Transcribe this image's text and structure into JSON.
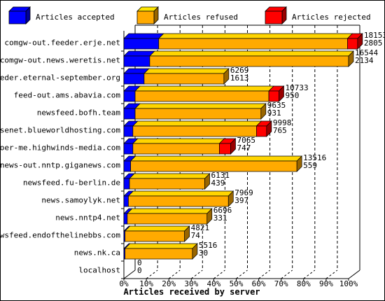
{
  "chart_data": {
    "type": "bar",
    "orientation": "horizontal",
    "stacked": true,
    "percent_scale": true,
    "three_d": true,
    "xlabel": "Articles received by server",
    "xlim": [
      0,
      100
    ],
    "x_ticks": [
      "0%",
      "10%",
      "20%",
      "30%",
      "40%",
      "50%",
      "60%",
      "70%",
      "80%",
      "90%",
      "100%"
    ],
    "grid": true,
    "legend_position": "top",
    "categories": [
      "comgw-out.feeder.erje.net",
      "comgw-out.news.weretis.net",
      "feeder.eternal-september.org",
      "feed-out.ams.abavia.com",
      "newsfeed.bofh.team",
      "usenet.blueworldhosting.com",
      "voer-me.highwinds-media.com",
      "news-out.nntp.giganews.com",
      "newsfeed.fu-berlin.de",
      "news.samoylyk.net",
      "news.nntp4.net",
      "newsfeed.endofthelinebbs.com",
      "news.nk.ca",
      "localhost"
    ],
    "series": [
      {
        "name": "Articles accepted",
        "color": "#0000ff",
        "percent": [
          15.5,
          11.5,
          9,
          5,
          5,
          4,
          4,
          3,
          2.5,
          2,
          1.5,
          0.5,
          0.5,
          0
        ]
      },
      {
        "name": "Articles refused",
        "color": "#ffaa00",
        "percent": [
          84,
          88.5,
          35.5,
          59.5,
          56,
          55,
          38.5,
          74,
          33.5,
          44.5,
          35.5,
          26.5,
          30,
          0
        ]
      },
      {
        "name": "Articles rejected",
        "color": "#ff0000",
        "percent": [
          4.5,
          0,
          0,
          4.5,
          0,
          4.5,
          5,
          0,
          0,
          0,
          0,
          0,
          0,
          0
        ]
      }
    ],
    "value_labels": {
      "total": [
        "18153",
        "16544",
        "6269",
        "10733",
        "9635",
        "9998",
        "7065",
        "13516",
        "6131",
        "7969",
        "6696",
        "4821",
        "5516",
        "0"
      ],
      "accepted": [
        "2805",
        "2134",
        "1613",
        "950",
        "931",
        "765",
        "747",
        "559",
        "439",
        "397",
        "331",
        "74",
        "30",
        "0"
      ]
    }
  }
}
